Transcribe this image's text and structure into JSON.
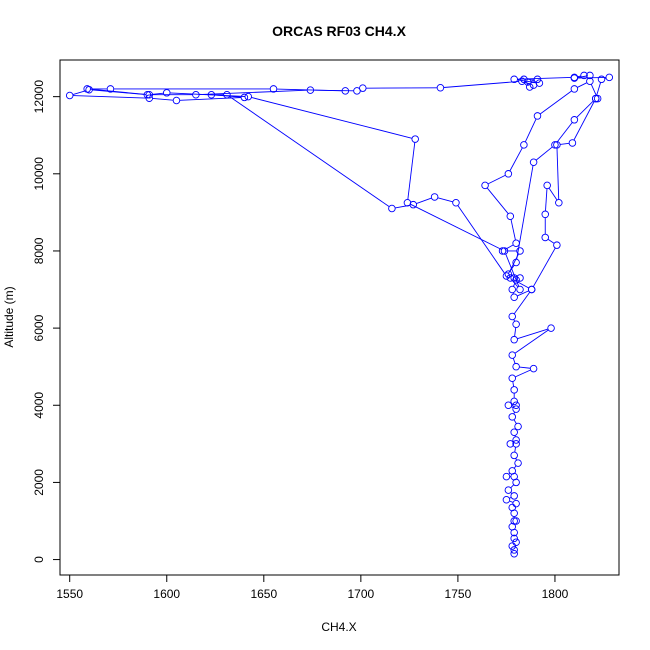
{
  "chart_data": {
    "type": "scatter",
    "title": "ORCAS RF03 CH4.X",
    "xlabel": "CH4.X",
    "ylabel": "Altitude (m)",
    "xlim": [
      1545,
      1833
    ],
    "ylim": [
      -400,
      12950
    ],
    "x_ticks": [
      1550,
      1600,
      1650,
      1700,
      1750,
      1800
    ],
    "y_ticks": [
      0,
      2000,
      4000,
      6000,
      8000,
      10000,
      12000
    ],
    "grid": false,
    "legend": "none",
    "colors": {
      "series": "#0000ff",
      "axes": "#000000"
    },
    "series": [
      {
        "marker": "open-circle",
        "line": true,
        "x": [
          1779,
          1779,
          1778,
          1780,
          1779,
          1779,
          1778,
          1780,
          1779,
          1779,
          1778,
          1780,
          1775,
          1779,
          1776,
          1780,
          1779,
          1775,
          1778,
          1781,
          1779,
          1780,
          1777,
          1780,
          1779,
          1781,
          1778,
          1780,
          1776,
          1780,
          1779,
          1779,
          1778,
          1789,
          1780,
          1778,
          1798,
          1779,
          1780,
          1778,
          1788,
          1779,
          1778,
          1780,
          1782,
          1779,
          1776,
          1782,
          1773,
          1780,
          1777,
          1764,
          1776,
          1784,
          1791,
          1810,
          1818,
          1822,
          1821,
          1810,
          1800,
          1789,
          1780,
          1775,
          1749,
          1738,
          1727,
          1716,
          1631,
          1623,
          1640,
          1605,
          1591,
          1550,
          1560,
          1590,
          1615,
          1674,
          1698,
          1701,
          1741,
          1783,
          1789,
          1787,
          1784,
          1791,
          1786,
          1792,
          1779,
          1810,
          1815,
          1818,
          1810,
          1828,
          1824,
          1821,
          1809,
          1801,
          1802,
          1796,
          1795,
          1795,
          1801,
          1788,
          1777,
          1782,
          1774,
          1724,
          1728,
          1642,
          1600,
          1591,
          1559,
          1571,
          1655,
          1692
        ],
        "y": [
          150,
          250,
          350,
          450,
          550,
          700,
          850,
          1000,
          1000,
          1200,
          1350,
          1450,
          1550,
          1650,
          1800,
          2000,
          2150,
          2150,
          2300,
          2500,
          2700,
          3000,
          3000,
          3100,
          3300,
          3450,
          3700,
          3900,
          4000,
          4000,
          4100,
          4400,
          4700,
          4950,
          5000,
          5300,
          6000,
          5700,
          6100,
          6300,
          7000,
          6800,
          7000,
          7250,
          7300,
          7300,
          7400,
          8000,
          8000,
          8200,
          8900,
          9700,
          10000,
          10750,
          11500,
          12200,
          12400,
          11950,
          11950,
          11400,
          10750,
          10300,
          7700,
          7350,
          9250,
          9400,
          9200,
          9100,
          12050,
          12050,
          11980,
          11900,
          11960,
          12030,
          12180,
          12050,
          12050,
          12170,
          12150,
          12220,
          12230,
          12400,
          12300,
          12250,
          12450,
          12450,
          12380,
          12350,
          12450,
          12500,
          12550,
          12550,
          12480,
          12500,
          12450,
          11950,
          10800,
          10750,
          9250,
          9700,
          8950,
          8350,
          8150,
          7000,
          7300,
          7000,
          8000,
          9250,
          10900,
          12000,
          12100,
          12050,
          12200,
          12200,
          12200,
          12150
        ]
      }
    ]
  }
}
